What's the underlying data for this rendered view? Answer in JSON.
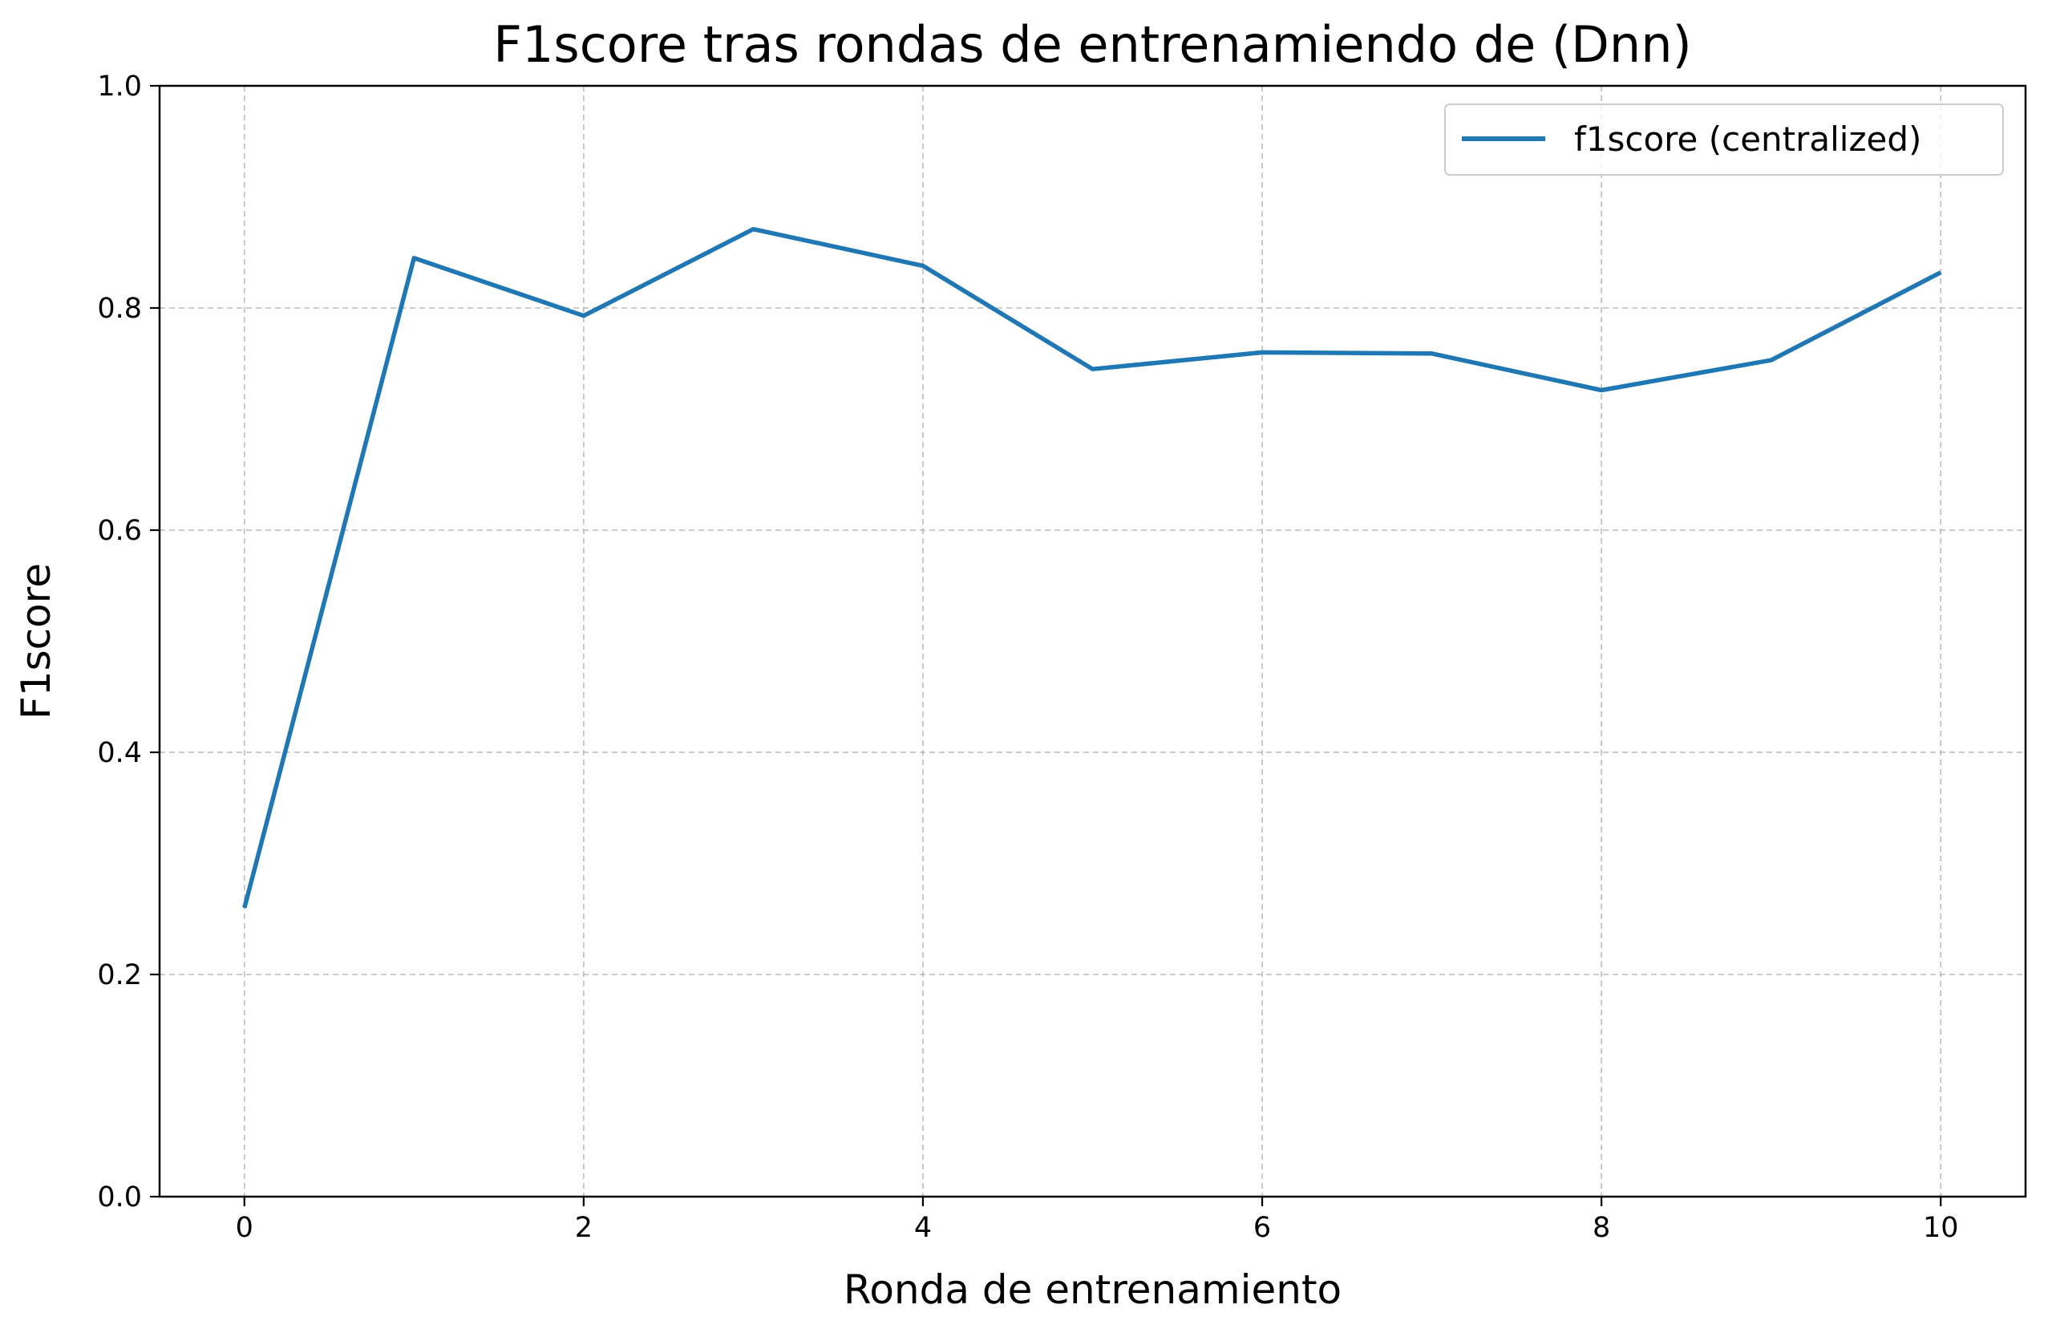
{
  "chart_data": {
    "type": "line",
    "title": "F1score tras rondas de entrenamiendo de (Dnn)",
    "xlabel": "Ronda de entrenamiento",
    "ylabel": "F1score",
    "xlim": [
      -0.5,
      10.5
    ],
    "ylim": [
      0.0,
      1.0
    ],
    "x_ticks": [
      0,
      2,
      4,
      6,
      8,
      10
    ],
    "x_tick_labels": [
      "0",
      "2",
      "4",
      "6",
      "8",
      "10"
    ],
    "y_ticks": [
      0.0,
      0.2,
      0.4,
      0.6,
      0.8,
      1.0
    ],
    "y_tick_labels": [
      "0.0",
      "0.2",
      "0.4",
      "0.6",
      "0.8",
      "1.0"
    ],
    "grid": true,
    "legend_position": "top-right",
    "x": [
      0,
      1,
      2,
      3,
      4,
      5,
      6,
      7,
      8,
      9,
      10
    ],
    "series": [
      {
        "name": "f1score (centralized)",
        "color": "#1f77b4",
        "values": [
          0.26,
          0.845,
          0.793,
          0.871,
          0.838,
          0.745,
          0.76,
          0.759,
          0.726,
          0.753,
          0.832
        ]
      }
    ]
  }
}
